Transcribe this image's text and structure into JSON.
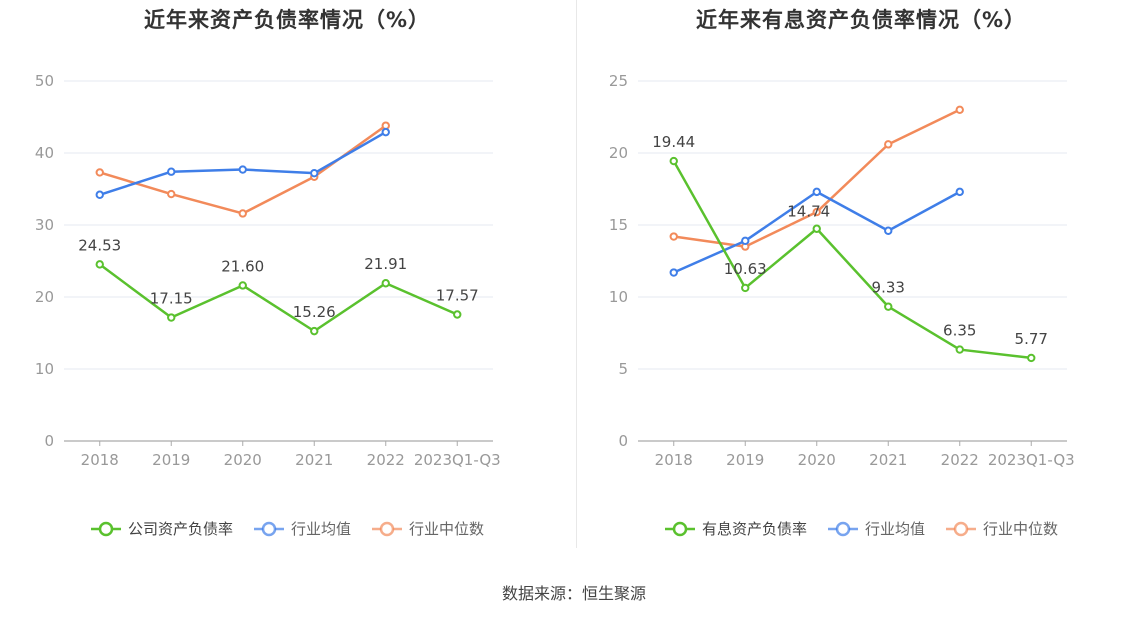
{
  "colors": {
    "company": "#5ac12e",
    "avg": "#3f7ee8",
    "median": "#f28a5a",
    "grid": "#e6e9f0",
    "axis": "#aaaaaa",
    "tick_text": "#999999",
    "label_text": "#444444"
  },
  "source": "数据来源：恒生聚源",
  "chart_data": [
    {
      "type": "line",
      "title": "近年来资产负债率情况（%）",
      "categories": [
        "2018",
        "2019",
        "2020",
        "2021",
        "2022",
        "2023Q1-Q3"
      ],
      "ylim": [
        0,
        50
      ],
      "yticks": [
        0,
        10,
        20,
        30,
        40,
        50
      ],
      "grid": true,
      "legend_position": "bottom",
      "series": [
        {
          "key": "company",
          "name": "公司资产负债率",
          "values": [
            24.53,
            17.15,
            21.6,
            15.26,
            21.91,
            17.57
          ],
          "labels": [
            "24.53",
            "17.15",
            "21.60",
            "15.26",
            "21.91",
            "17.57"
          ]
        },
        {
          "key": "avg",
          "name": "行业均值",
          "values": [
            34.2,
            37.4,
            37.7,
            37.2,
            42.9,
            null
          ]
        },
        {
          "key": "median",
          "name": "行业中位数",
          "values": [
            37.3,
            34.3,
            31.6,
            36.7,
            43.8,
            null
          ]
        }
      ]
    },
    {
      "type": "line",
      "title": "近年来有息资产负债率情况（%）",
      "categories": [
        "2018",
        "2019",
        "2020",
        "2021",
        "2022",
        "2023Q1-Q3"
      ],
      "ylim": [
        0,
        25
      ],
      "yticks": [
        0,
        5,
        10,
        15,
        20,
        25
      ],
      "grid": true,
      "legend_position": "bottom",
      "series": [
        {
          "key": "company",
          "name": "有息资产负债率",
          "values": [
            19.44,
            10.63,
            14.74,
            9.33,
            6.35,
            5.77
          ],
          "labels": [
            "19.44",
            "10.63",
            "14.74",
            "9.33",
            "6.35",
            "5.77"
          ]
        },
        {
          "key": "avg",
          "name": "行业均值",
          "values": [
            11.7,
            13.9,
            17.3,
            14.6,
            17.3,
            null
          ]
        },
        {
          "key": "median",
          "name": "行业中位数",
          "values": [
            14.2,
            13.5,
            15.9,
            20.6,
            23.0,
            null
          ]
        }
      ]
    }
  ]
}
